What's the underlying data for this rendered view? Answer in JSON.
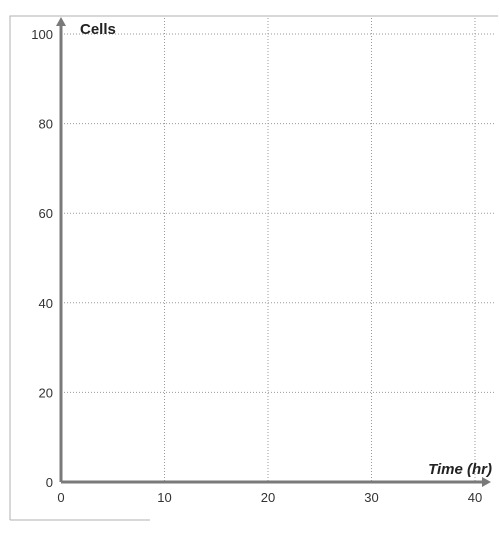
{
  "chart_data": {
    "type": "line",
    "title": "",
    "xlabel": "Time (hr)",
    "ylabel": "Cells",
    "xlim": [
      0,
      40
    ],
    "ylim": [
      0,
      100
    ],
    "x_ticks": [
      0,
      10,
      20,
      30,
      40
    ],
    "y_ticks": [
      0,
      20,
      40,
      60,
      80,
      100
    ],
    "x_tick_labels": [
      "0",
      "10",
      "20",
      "30",
      "40"
    ],
    "y_tick_labels": [
      "0",
      "20",
      "40",
      "60",
      "80",
      "100"
    ],
    "grid": true,
    "series": []
  }
}
